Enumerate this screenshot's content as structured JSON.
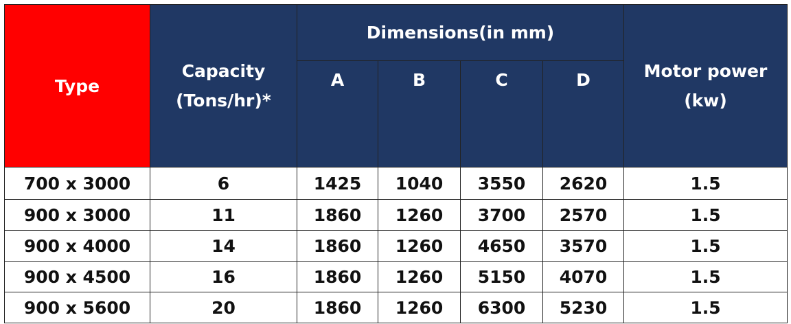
{
  "header": {
    "type": "Type",
    "capacity": "Capacity (Tons/hr)*",
    "dimensions": "Dimensions(in mm)",
    "dimension_columns": [
      "A",
      "B",
      "C",
      "D"
    ],
    "motor_power": "Motor power (kw)"
  },
  "table": {
    "rows": [
      [
        "700 x 3000",
        "6",
        "1425",
        "1040",
        "3550",
        "2620",
        "1.5"
      ],
      [
        "900 x 3000",
        "11",
        "1860",
        "1260",
        "3700",
        "2570",
        "1.5"
      ],
      [
        "900 x 4000",
        "14",
        "1860",
        "1260",
        "4650",
        "3570",
        "1.5"
      ],
      [
        "900 x 4500",
        "16",
        "1860",
        "1260",
        "5150",
        "4070",
        "1.5"
      ],
      [
        "900 x 5600",
        "20",
        "1860",
        "1260",
        "6300",
        "5230",
        "1.5"
      ]
    ]
  }
}
